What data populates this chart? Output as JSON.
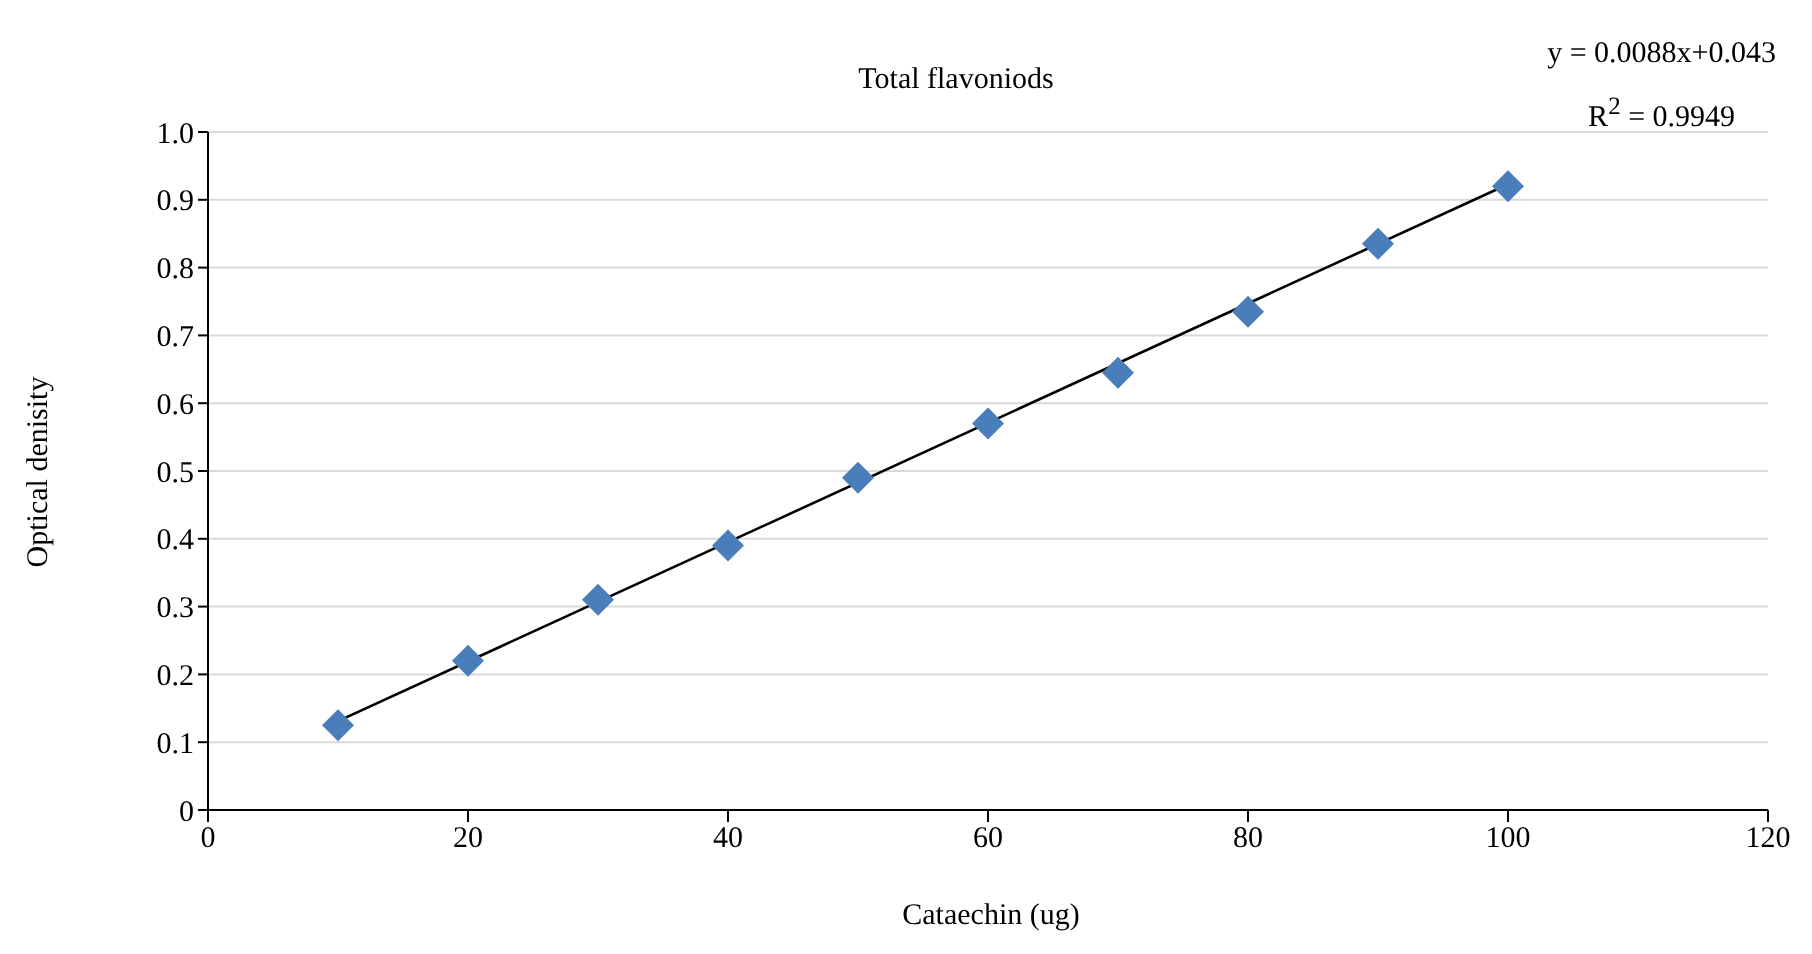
{
  "chart_data": {
    "type": "scatter",
    "title": "Total flavoniods",
    "xlabel": "Cataechin (ug)",
    "ylabel": "Optical denisity",
    "annotations": [
      "y = 0.0088x+0.043",
      "R$^{2}$ = 0.9949"
    ],
    "x": [
      10,
      20,
      30,
      40,
      50,
      60,
      70,
      80,
      90,
      100
    ],
    "series": [
      {
        "color": "#4a7ebb",
        "marker": "diamond",
        "values": [
          0.125,
          0.22,
          0.31,
          0.39,
          0.49,
          0.57,
          0.645,
          0.735,
          0.835,
          0.92
        ]
      },
      {
        "type": "line",
        "color": "#000000",
        "marker": "none",
        "x": [
          10,
          100
        ],
        "values": [
          0.131,
          0.923
        ]
      }
    ],
    "xlim": [
      0,
      120
    ],
    "xticks": [
      0,
      20,
      40,
      60,
      80,
      100,
      120
    ],
    "ylim": [
      0,
      1
    ],
    "yticks": [
      0,
      0.1,
      0.2,
      0.3,
      0.4,
      0.5,
      0.6,
      0.7,
      0.8,
      0.9,
      {
        "value": 1,
        "label": "1.0"
      }
    ],
    "grid": "y",
    "legend": false
  }
}
